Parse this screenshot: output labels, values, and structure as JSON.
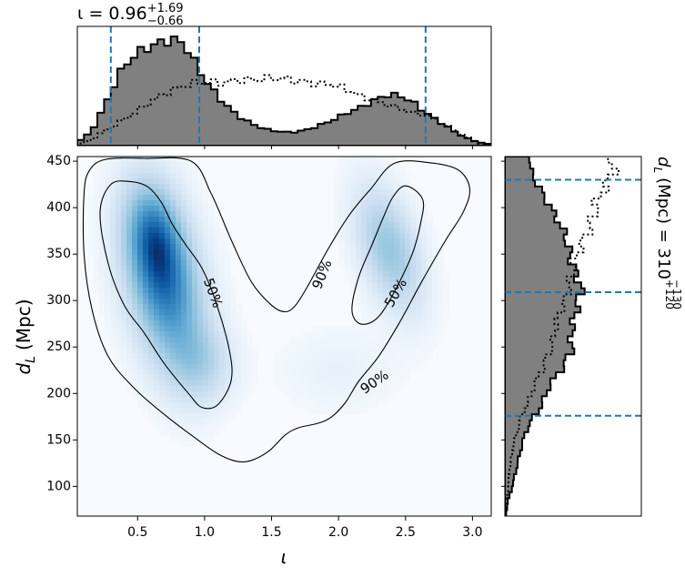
{
  "chart_data": {
    "type": "scatter",
    "subtype": "corner-plot: 2D posterior density with marginal histograms",
    "main": {
      "xlabel": "ι",
      "ylabel_base": "d",
      "ylabel_sub": "L",
      "ylabel_unit": "(Mpc)",
      "xlim": [
        0.05,
        3.14
      ],
      "ylim": [
        68,
        455
      ],
      "xticks": [
        0.5,
        1.0,
        1.5,
        2.0,
        2.5,
        3.0
      ],
      "xtick_labels": [
        "0.5",
        "1.0",
        "1.5",
        "2.0",
        "2.5",
        "3.0"
      ],
      "yticks": [
        100,
        150,
        200,
        250,
        300,
        350,
        400,
        450
      ],
      "ytick_labels": [
        "100",
        "150",
        "200",
        "250",
        "300",
        "350",
        "400",
        "450"
      ],
      "colormap": "Blues",
      "density_blobs": [
        {
          "x": 0.7,
          "y": 318,
          "sx": 0.2,
          "sy": 62,
          "rho": -0.35,
          "w": 1.0
        },
        {
          "x": 0.62,
          "y": 372,
          "sx": 0.14,
          "sy": 38,
          "rho": -0.2,
          "w": 0.55
        },
        {
          "x": 0.98,
          "y": 232,
          "sx": 0.16,
          "sy": 28,
          "rho": 0.0,
          "w": 0.3
        },
        {
          "x": 2.38,
          "y": 355,
          "sx": 0.17,
          "sy": 45,
          "rho": -0.45,
          "w": 0.55
        },
        {
          "x": 2.0,
          "y": 225,
          "sx": 0.3,
          "sy": 30,
          "rho": 0.0,
          "w": 0.08
        }
      ],
      "contours": [
        {
          "label": "50%",
          "label_at": [
            1.06,
            308
          ],
          "label_rotation": 70,
          "points": [
            [
              0.3,
              425
            ],
            [
              0.45,
              428
            ],
            [
              0.58,
              422
            ],
            [
              0.68,
              405
            ],
            [
              0.76,
              382
            ],
            [
              0.86,
              360
            ],
            [
              0.98,
              335
            ],
            [
              1.08,
              300
            ],
            [
              1.18,
              250
            ],
            [
              1.2,
              215
            ],
            [
              1.1,
              188
            ],
            [
              0.98,
              185
            ],
            [
              0.88,
              200
            ],
            [
              0.7,
              232
            ],
            [
              0.55,
              265
            ],
            [
              0.4,
              295
            ],
            [
              0.28,
              340
            ],
            [
              0.22,
              395
            ]
          ]
        },
        {
          "label": "50%",
          "label_at": [
            2.43,
            308
          ],
          "label_rotation": -60,
          "points": [
            [
              2.48,
              423
            ],
            [
              2.56,
              420
            ],
            [
              2.63,
              408
            ],
            [
              2.62,
              388
            ],
            [
              2.55,
              350
            ],
            [
              2.4,
              305
            ],
            [
              2.28,
              280
            ],
            [
              2.16,
              275
            ],
            [
              2.1,
              290
            ],
            [
              2.15,
              325
            ],
            [
              2.25,
              360
            ],
            [
              2.33,
              388
            ],
            [
              2.4,
              410
            ]
          ]
        },
        {
          "label": "90%",
          "label_at": [
            1.88,
            328
          ],
          "label_rotation": -68,
          "points": [
            [
              0.1,
              415
            ],
            [
              0.14,
              440
            ],
            [
              0.26,
              452
            ],
            [
              0.55,
              453
            ],
            [
              0.9,
              450
            ],
            [
              1.05,
              415
            ],
            [
              1.2,
              365
            ],
            [
              1.35,
              320
            ],
            [
              1.5,
              295
            ],
            [
              1.6,
              288
            ],
            [
              1.68,
              295
            ],
            [
              1.78,
              318
            ],
            [
              1.92,
              355
            ],
            [
              2.08,
              392
            ],
            [
              2.24,
              420
            ],
            [
              2.42,
              448
            ],
            [
              2.7,
              448
            ],
            [
              2.9,
              440
            ],
            [
              2.98,
              420
            ],
            [
              2.93,
              395
            ],
            [
              2.8,
              365
            ],
            [
              2.62,
              320
            ],
            [
              2.45,
              275
            ],
            [
              2.3,
              240
            ],
            [
              2.15,
              213
            ],
            [
              2.05,
              190
            ],
            [
              1.95,
              175
            ],
            [
              1.85,
              168
            ],
            [
              1.7,
              163
            ],
            [
              1.6,
              155
            ],
            [
              1.48,
              138
            ],
            [
              1.35,
              128
            ],
            [
              1.24,
              127
            ],
            [
              1.1,
              135
            ],
            [
              0.95,
              150
            ],
            [
              0.72,
              175
            ],
            [
              0.48,
              205
            ],
            [
              0.28,
              240
            ],
            [
              0.16,
              290
            ],
            [
              0.1,
              350
            ]
          ]
        },
        {
          "label": "90%",
          "label_at": [
            2.27,
            212
          ],
          "label_rotation": -35,
          "points": []
        }
      ],
      "contour_labels": [
        "50%",
        "50%",
        "90%",
        "90%"
      ]
    },
    "top_marginal": {
      "title_prefix": "ι = 0.96",
      "title_sup": "+1.69",
      "title_sub": "−0.66",
      "quantile_lines": [
        0.3,
        0.96,
        2.65
      ],
      "filled_series_shape": [
        [
          0.05,
          0.03
        ],
        [
          0.15,
          0.12
        ],
        [
          0.25,
          0.35
        ],
        [
          0.35,
          0.63
        ],
        [
          0.45,
          0.8
        ],
        [
          0.55,
          0.88
        ],
        [
          0.65,
          0.93
        ],
        [
          0.75,
          0.97
        ],
        [
          0.85,
          0.93
        ],
        [
          0.95,
          0.7
        ],
        [
          1.05,
          0.52
        ],
        [
          1.15,
          0.38
        ],
        [
          1.25,
          0.27
        ],
        [
          1.35,
          0.2
        ],
        [
          1.45,
          0.15
        ],
        [
          1.55,
          0.13
        ],
        [
          1.65,
          0.12
        ],
        [
          1.75,
          0.14
        ],
        [
          1.85,
          0.18
        ],
        [
          1.95,
          0.23
        ],
        [
          2.05,
          0.29
        ],
        [
          2.15,
          0.34
        ],
        [
          2.25,
          0.4
        ],
        [
          2.35,
          0.46
        ],
        [
          2.45,
          0.46
        ],
        [
          2.55,
          0.4
        ],
        [
          2.65,
          0.3
        ],
        [
          2.75,
          0.22
        ],
        [
          2.85,
          0.14
        ],
        [
          2.95,
          0.07
        ],
        [
          3.05,
          0.03
        ],
        [
          3.14,
          0.01
        ]
      ],
      "prior_series_shape": [
        [
          0.05,
          0.01
        ],
        [
          0.15,
          0.05
        ],
        [
          0.25,
          0.13
        ],
        [
          0.35,
          0.2
        ],
        [
          0.45,
          0.28
        ],
        [
          0.55,
          0.36
        ],
        [
          0.65,
          0.44
        ],
        [
          0.75,
          0.5
        ],
        [
          0.85,
          0.55
        ],
        [
          0.95,
          0.58
        ],
        [
          1.05,
          0.58
        ],
        [
          1.15,
          0.57
        ],
        [
          1.25,
          0.6
        ],
        [
          1.35,
          0.6
        ],
        [
          1.45,
          0.61
        ],
        [
          1.55,
          0.62
        ],
        [
          1.65,
          0.6
        ],
        [
          1.75,
          0.58
        ],
        [
          1.85,
          0.56
        ],
        [
          1.95,
          0.56
        ],
        [
          2.05,
          0.52
        ],
        [
          2.15,
          0.46
        ],
        [
          2.25,
          0.42
        ],
        [
          2.35,
          0.38
        ],
        [
          2.45,
          0.34
        ],
        [
          2.55,
          0.3
        ],
        [
          2.65,
          0.28
        ],
        [
          2.75,
          0.22
        ],
        [
          2.85,
          0.15
        ],
        [
          2.95,
          0.08
        ],
        [
          3.05,
          0.02
        ],
        [
          3.14,
          0.01
        ]
      ]
    },
    "right_marginal": {
      "label_base": "d",
      "label_sub": "L",
      "label_rest": "(Mpc) = 310",
      "label_sup": "+120",
      "label_sub2": "−130",
      "quantile_lines": [
        430,
        309,
        176
      ],
      "filled_series_shape": [
        [
          70,
          0.01
        ],
        [
          85,
          0.03
        ],
        [
          100,
          0.07
        ],
        [
          115,
          0.1
        ],
        [
          130,
          0.13
        ],
        [
          145,
          0.16
        ],
        [
          160,
          0.2
        ],
        [
          175,
          0.27
        ],
        [
          190,
          0.36
        ],
        [
          205,
          0.4
        ],
        [
          215,
          0.46
        ],
        [
          225,
          0.52
        ],
        [
          235,
          0.58
        ],
        [
          245,
          0.62
        ],
        [
          255,
          0.63
        ],
        [
          265,
          0.62
        ],
        [
          275,
          0.64
        ],
        [
          285,
          0.66
        ],
        [
          295,
          0.68
        ],
        [
          305,
          0.7
        ],
        [
          315,
          0.72
        ],
        [
          325,
          0.68
        ],
        [
          335,
          0.65
        ],
        [
          345,
          0.62
        ],
        [
          355,
          0.6
        ],
        [
          365,
          0.58
        ],
        [
          375,
          0.55
        ],
        [
          385,
          0.5
        ],
        [
          395,
          0.46
        ],
        [
          405,
          0.4
        ],
        [
          415,
          0.36
        ],
        [
          425,
          0.3
        ],
        [
          435,
          0.26
        ],
        [
          445,
          0.24
        ],
        [
          455,
          0.24
        ]
      ],
      "prior_series_shape": [
        [
          70,
          0.01
        ],
        [
          85,
          0.02
        ],
        [
          100,
          0.03
        ],
        [
          115,
          0.04
        ],
        [
          130,
          0.06
        ],
        [
          145,
          0.08
        ],
        [
          160,
          0.12
        ],
        [
          175,
          0.15
        ],
        [
          190,
          0.22
        ],
        [
          205,
          0.26
        ],
        [
          215,
          0.3
        ],
        [
          225,
          0.35
        ],
        [
          235,
          0.38
        ],
        [
          245,
          0.42
        ],
        [
          255,
          0.45
        ],
        [
          265,
          0.46
        ],
        [
          275,
          0.49
        ],
        [
          285,
          0.5
        ],
        [
          295,
          0.55
        ],
        [
          305,
          0.58
        ],
        [
          315,
          0.6
        ],
        [
          325,
          0.62
        ],
        [
          335,
          0.64
        ],
        [
          345,
          0.66
        ],
        [
          355,
          0.7
        ],
        [
          365,
          0.74
        ],
        [
          375,
          0.78
        ],
        [
          385,
          0.82
        ],
        [
          395,
          0.84
        ],
        [
          405,
          0.86
        ],
        [
          415,
          0.9
        ],
        [
          425,
          0.96
        ],
        [
          435,
          1.0
        ],
        [
          445,
          1.02
        ],
        [
          455,
          1.02
        ]
      ]
    },
    "colors": {
      "hist_fill": "#808080",
      "hist_edge": "#000000",
      "quantile_line": "#1f77b4",
      "density_low": "#f7fbff",
      "density_high": "#08306b"
    }
  }
}
